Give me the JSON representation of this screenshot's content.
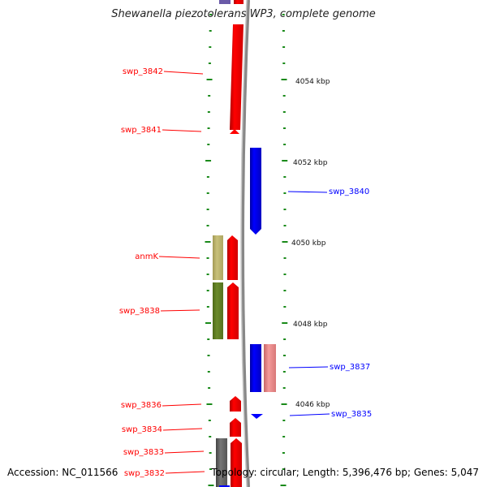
{
  "title": "Shewanella piezotolerans WP3, complete genome",
  "footer": {
    "accession": "Accession: NC_011566",
    "info": "Topology: circular; Length: 5,396,476 bp; Genes: 5,047"
  },
  "colors": {
    "reverse_strand": "#ff0000",
    "forward_strand": "#0000ff",
    "backbone": "#888888",
    "tick": "#1a8a1a",
    "olive": "#6b8a2a",
    "khaki": "#c8c07a",
    "pink": "#f08a8a",
    "gray_gene": "#666666",
    "purple": "#6a5aa8"
  },
  "scale_labels": [
    "4054 kbp",
    "4052 kbp",
    "4050 kbp",
    "4048 kbp",
    "4046 kbp"
  ],
  "left_genes": [
    {
      "name": "swp_3842"
    },
    {
      "name": "swp_3841"
    },
    {
      "name": "anmK"
    },
    {
      "name": "swp_3838"
    },
    {
      "name": "swp_3836"
    },
    {
      "name": "swp_3834"
    },
    {
      "name": "swp_3833"
    },
    {
      "name": "swp_3832"
    }
  ],
  "right_genes": [
    {
      "name": "swp_3840"
    },
    {
      "name": "swp_3837"
    },
    {
      "name": "swp_3835"
    }
  ]
}
